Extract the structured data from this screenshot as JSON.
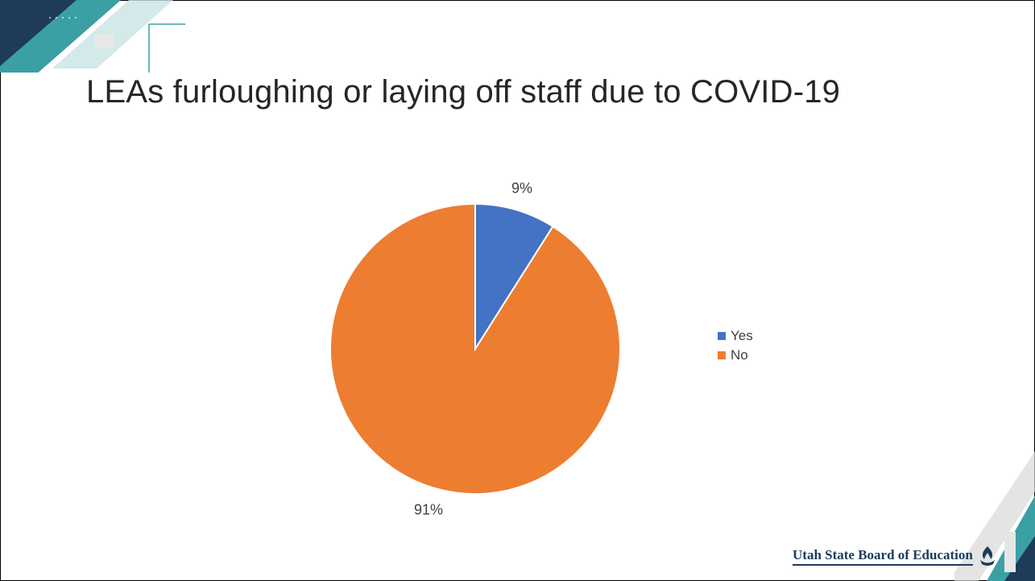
{
  "slide": {
    "title": "LEAs furloughing or laying off staff due to COVID-19",
    "logo_text": "Utah State Board of Education"
  },
  "colors": {
    "accent_teal": "#3aa0a4",
    "accent_navy": "#1f3b5a",
    "yes": "#4472c4",
    "no": "#ed7d31"
  },
  "chart_data": {
    "type": "pie",
    "categories": [
      "Yes",
      "No"
    ],
    "values": [
      9,
      91
    ],
    "data_labels": [
      "9%",
      "91%"
    ],
    "title": "",
    "legend_position": "right",
    "colors": [
      "#4472c4",
      "#ed7d31"
    ]
  }
}
